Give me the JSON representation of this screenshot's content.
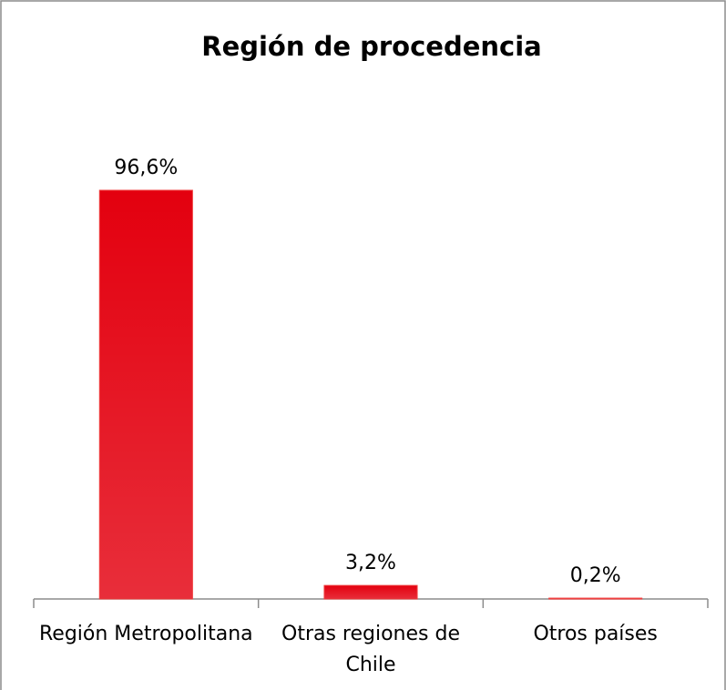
{
  "chart_data": {
    "type": "bar",
    "title": "Región de procedencia",
    "categories": [
      "Región Metropolitana",
      "Otras regiones de Chile",
      "Otros países"
    ],
    "values": [
      96.6,
      3.2,
      0.2
    ],
    "value_labels": [
      "96,6%",
      "3,2%",
      "0,2%"
    ],
    "color": "#e3000f"
  }
}
